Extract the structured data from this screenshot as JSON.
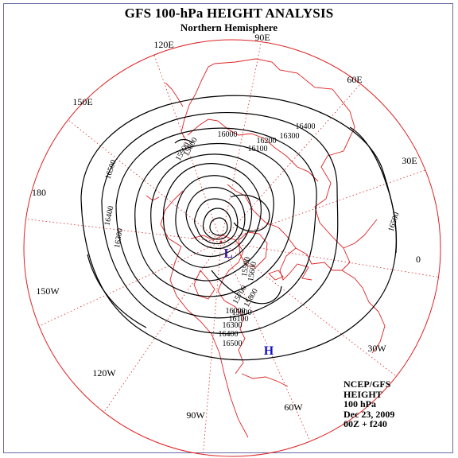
{
  "title": "GFS 100-hPa HEIGHT ANALYSIS",
  "subtitle": "Northern Hemisphere",
  "info": {
    "center": "NCEP/GFS",
    "field": "HEIGHT",
    "level": "100 hPa",
    "date": "Dec 23, 2009",
    "valid": "00Z + f240"
  },
  "longitude_labels": [
    "90E",
    "60E",
    "30E",
    "0",
    "30W",
    "60W",
    "90W",
    "120W",
    "150W",
    "180",
    "150E",
    "120E"
  ],
  "contour_labels": [
    "16500",
    "16400",
    "16300",
    "16200",
    "16100",
    "16000",
    "15900",
    "15800",
    "15700",
    "15600",
    "15500"
  ],
  "pressure_centers": [
    {
      "type": "low",
      "symbol": "L",
      "color": "#3a1aa8"
    },
    {
      "type": "high",
      "symbol": "H",
      "color": "#1414c8"
    }
  ],
  "colors": {
    "coastline": "#dd2222",
    "grid": "#dd2222",
    "contour": "#000000",
    "frame": "#6a6aa8"
  }
}
